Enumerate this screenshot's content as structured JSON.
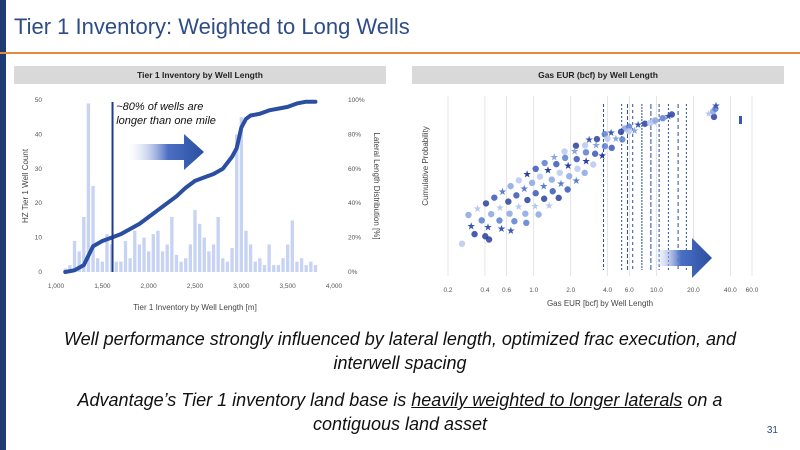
{
  "title": "Tier 1 Inventory: Weighted to Long Wells",
  "colors": {
    "accent_orange": "#e58a3c",
    "navy": "#1f3b73",
    "blue_dark": "#2a4fa0",
    "bar_light": "#c7d3f2"
  },
  "page_number": "31",
  "captions": {
    "line1": "Well performance strongly influenced by lateral length, optimized frac execution, and interwell spacing",
    "line2_pre": "Advantage’s Tier 1 inventory land base is ",
    "line2_underlined": "heavily weighted to longer laterals",
    "line2_post": " on a contiguous land asset"
  },
  "chart_data": [
    {
      "type": "bar",
      "panel_title": "Tier 1 Inventory by Well Length",
      "xlabel": "Tier 1 Inventory by Well Length [m]",
      "ylabel": "HZ Tier 1 Well Count",
      "y2label": "Lateral Length Distribution [%]",
      "xlim": [
        1000,
        4000
      ],
      "ylim": [
        0,
        50
      ],
      "y2lim": [
        0,
        100
      ],
      "x_ticks": [
        "1,000",
        "1,500",
        "2,000",
        "2,500",
        "3,000",
        "3,500",
        "4,000"
      ],
      "y_ticks": [
        "0",
        "10",
        "20",
        "30",
        "40",
        "50"
      ],
      "y2_ticks": [
        "0%",
        "20%",
        "40%",
        "60%",
        "80%",
        "100%"
      ],
      "bars": {
        "x": [
          1100,
          1150,
          1200,
          1250,
          1300,
          1350,
          1400,
          1450,
          1500,
          1550,
          1600,
          1650,
          1700,
          1750,
          1800,
          1850,
          1900,
          1950,
          2000,
          2050,
          2100,
          2150,
          2200,
          2250,
          2300,
          2350,
          2400,
          2450,
          2500,
          2550,
          2600,
          2650,
          2700,
          2750,
          2800,
          2850,
          2900,
          2950,
          3000,
          3050,
          3100,
          3150,
          3200,
          3250,
          3300,
          3350,
          3400,
          3450,
          3500,
          3550,
          3600,
          3650,
          3700,
          3750,
          3800
        ],
        "values": [
          1,
          2,
          9,
          6,
          16,
          49,
          25,
          4,
          3,
          11,
          8,
          3,
          3,
          9,
          4,
          12,
          8,
          10,
          6,
          11,
          12,
          6,
          8,
          16,
          5,
          3,
          4,
          8,
          18,
          14,
          10,
          6,
          8,
          16,
          4,
          3,
          7,
          40,
          45,
          12,
          8,
          3,
          4,
          2,
          8,
          2,
          2,
          4,
          8,
          15,
          3,
          4,
          2,
          3,
          2
        ]
      },
      "cumulative_line": {
        "x": [
          1100,
          1200,
          1300,
          1400,
          1500,
          1600,
          1700,
          1800,
          1900,
          2000,
          2100,
          2200,
          2300,
          2400,
          2500,
          2600,
          2700,
          2800,
          2900,
          2950,
          3000,
          3050,
          3100,
          3200,
          3300,
          3400,
          3500,
          3600,
          3700,
          3800
        ],
        "values": [
          0,
          1,
          4,
          15,
          18,
          20,
          22,
          25,
          28,
          32,
          36,
          40,
          44,
          49,
          53,
          55,
          57,
          60,
          67,
          72,
          84,
          89,
          91,
          92,
          94,
          95,
          96,
          98,
          99,
          99
        ]
      },
      "vertical_marker_x": 1610,
      "annotation": "~80% of wells are longer than one mile"
    },
    {
      "type": "scatter",
      "panel_title": "Gas EUR (bcf) by Well Length",
      "xlabel": "Gas EUR [bcf] by Well Length",
      "ylabel": "Cumulative Probability",
      "x_scale": "log",
      "x_ticks": [
        "0.2",
        "0.4",
        "0.6",
        "1.0",
        "2.0",
        "4.0",
        "6.0",
        "10.0",
        "20.0",
        "40.0",
        "60.0"
      ]
    }
  ]
}
